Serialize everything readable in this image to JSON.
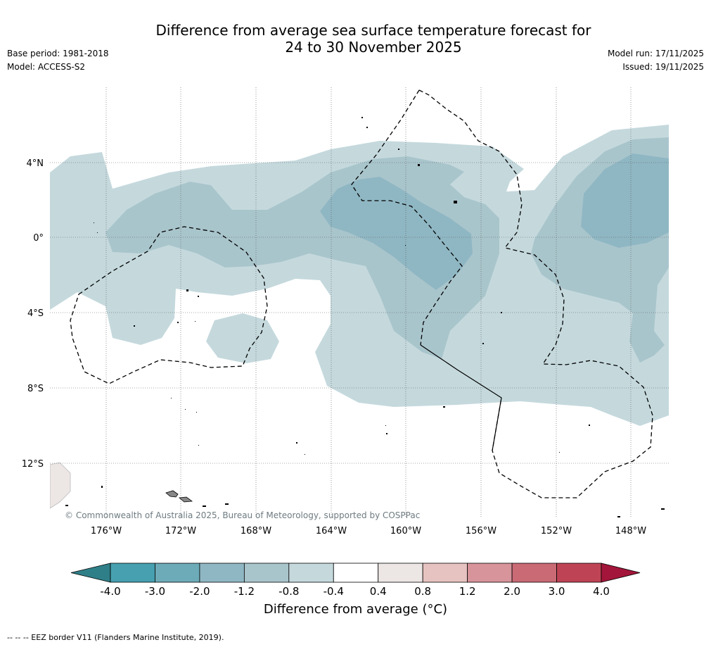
{
  "title": {
    "line1": "Difference from average sea surface temperature forecast for",
    "line2": "24 to 30 November 2025"
  },
  "meta_left": {
    "base_period": "Base period: 1981-2018",
    "model": "Model: ACCESS-S2"
  },
  "meta_right": {
    "model_run": "Model run: 17/11/2025",
    "issued": "Issued: 19/11/2025"
  },
  "map": {
    "lon_labels": [
      "176°W",
      "172°W",
      "168°W",
      "164°W",
      "160°W",
      "156°W",
      "152°W",
      "148°W"
    ],
    "lat_labels": [
      "4°N",
      "0°",
      "4°S",
      "8°S",
      "12°S"
    ],
    "copyright": "© Commonwealth of Australia 2025, Bureau of Meteorology, supported by COSPPac"
  },
  "colorbar": {
    "ticks": [
      "-4.0",
      "-3.0",
      "-2.0",
      "-1.2",
      "-0.8",
      "-0.4",
      "0.4",
      "0.8",
      "1.2",
      "2.0",
      "3.0",
      "4.0"
    ],
    "colors": [
      "#46a0b0",
      "#6dabb8",
      "#8fb7c3",
      "#a9c5cc",
      "#c5d9dd",
      "#ffffff",
      "#ece6e5",
      "#e6c3c0",
      "#d7949a",
      "#c96a75",
      "#be4455"
    ],
    "under_color": "#2f7f88",
    "over_color": "#a3153a",
    "label": "Difference from average (°C)"
  },
  "footnote": "-- -- -- EEZ border V11 (Flanders Marine Institute, 2019)."
}
